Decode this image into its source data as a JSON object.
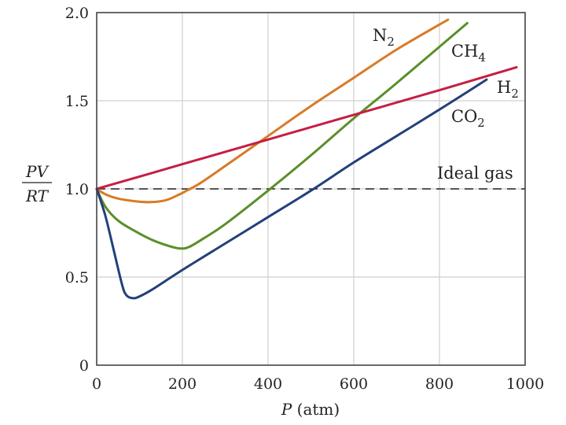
{
  "chart_data": {
    "type": "line",
    "title": "",
    "xlabel_var": "P",
    "xlabel_unit": " (atm)",
    "ylabel_numerator": "PV",
    "ylabel_denominator": "RT",
    "xlim": [
      0,
      1000
    ],
    "ylim": [
      0,
      2.0
    ],
    "x_ticks": [
      0,
      200,
      400,
      600,
      800,
      1000
    ],
    "x_tick_labels": [
      "0",
      "200",
      "400",
      "600",
      "800",
      "1000"
    ],
    "y_ticks": [
      0,
      0.5,
      1.0,
      1.5,
      2.0
    ],
    "y_tick_labels": [
      "0",
      "0.5",
      "1.0",
      "1.5",
      "2.0"
    ],
    "grid": true,
    "reference_line": {
      "label": "Ideal gas",
      "y": 1.0
    },
    "series": [
      {
        "name": "N2",
        "label_main": "N",
        "label_sub": "2",
        "color": "#d97a26",
        "points": [
          [
            0,
            1.0
          ],
          [
            20,
            0.97
          ],
          [
            50,
            0.945
          ],
          [
            90,
            0.93
          ],
          [
            125,
            0.925
          ],
          [
            160,
            0.935
          ],
          [
            190,
            0.965
          ],
          [
            210,
            0.99
          ],
          [
            240,
            1.03
          ],
          [
            300,
            1.13
          ],
          [
            400,
            1.3
          ],
          [
            500,
            1.47
          ],
          [
            600,
            1.63
          ],
          [
            700,
            1.79
          ],
          [
            820,
            1.96
          ]
        ]
      },
      {
        "name": "CH4",
        "label_main": "CH",
        "label_sub": "4",
        "color": "#5a8f29",
        "points": [
          [
            0,
            1.0
          ],
          [
            20,
            0.9
          ],
          [
            50,
            0.82
          ],
          [
            90,
            0.76
          ],
          [
            130,
            0.71
          ],
          [
            170,
            0.675
          ],
          [
            195,
            0.662
          ],
          [
            215,
            0.67
          ],
          [
            250,
            0.72
          ],
          [
            300,
            0.8
          ],
          [
            400,
            0.99
          ],
          [
            500,
            1.19
          ],
          [
            600,
            1.4
          ],
          [
            700,
            1.6
          ],
          [
            865,
            1.94
          ]
        ]
      },
      {
        "name": "H2",
        "label_main": "H",
        "label_sub": "2",
        "color": "#c41f42",
        "points": [
          [
            0,
            1.0
          ],
          [
            200,
            1.14
          ],
          [
            400,
            1.28
          ],
          [
            600,
            1.42
          ],
          [
            800,
            1.56
          ],
          [
            980,
            1.69
          ]
        ]
      },
      {
        "name": "CO2",
        "label_main": "CO",
        "label_sub": "2",
        "color": "#23407a",
        "points": [
          [
            0,
            1.0
          ],
          [
            20,
            0.85
          ],
          [
            40,
            0.65
          ],
          [
            60,
            0.45
          ],
          [
            70,
            0.395
          ],
          [
            85,
            0.38
          ],
          [
            100,
            0.39
          ],
          [
            130,
            0.43
          ],
          [
            200,
            0.54
          ],
          [
            300,
            0.69
          ],
          [
            400,
            0.84
          ],
          [
            500,
            0.99
          ],
          [
            600,
            1.15
          ],
          [
            700,
            1.3
          ],
          [
            800,
            1.45
          ],
          [
            910,
            1.62
          ]
        ]
      }
    ]
  }
}
